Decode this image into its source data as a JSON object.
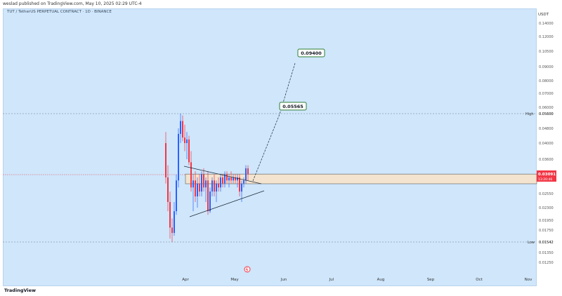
{
  "header": {
    "publisher": "weslad published on TradingView.com, May 10, 2025 02:29 UTC-4"
  },
  "chart_meta": {
    "symbol": "TUT / TetherUS PERPETUAL CONTRACT · 1D · BINANCE",
    "currency": "USDT",
    "high_label": "High",
    "low_label": "Low",
    "current_price": "0.03091",
    "countdown": "13:20:46",
    "logo_text": "TradingView",
    "colors": {
      "bg": "#cfe6fb",
      "up": "#2962ff",
      "down": "#f23645",
      "target": "#2e7d32",
      "zone": "#f4e4cf"
    }
  },
  "chart_data": {
    "type": "candlestick",
    "ylim": [
      0.01,
      0.145
    ],
    "y_ticks": [
      "0.14000",
      "0.12000",
      "0.10500",
      "0.09000",
      "0.08000",
      "0.07000",
      "0.06000",
      "0.05600",
      "0.04800",
      "0.04000",
      "0.03600",
      "0.03091",
      "0.02550",
      "0.02300",
      "0.01950",
      "0.01750",
      "0.01542",
      "0.01350",
      "0.01250"
    ],
    "x_ticks": [
      "Apr",
      "May",
      "Jun",
      "Jul",
      "Aug",
      "Sep",
      "Oct",
      "Nov"
    ],
    "high": {
      "label": "0.05600",
      "value": 0.056
    },
    "low": {
      "label": "0.01542",
      "value": 0.01542
    },
    "current_price": 0.03091,
    "zone": [
      0.0279,
      0.0311
    ],
    "targets": [
      {
        "label": "0.05565",
        "value": 0.05565
      },
      {
        "label": "0.09400",
        "value": 0.094
      }
    ],
    "candles_note": "approximate daily OHLC, Mar 18 – May 10, 2025",
    "candles": [
      [
        0.04,
        0.046,
        0.028,
        0.03
      ],
      [
        0.03,
        0.034,
        0.022,
        0.024
      ],
      [
        0.024,
        0.026,
        0.016,
        0.018
      ],
      [
        0.018,
        0.02,
        0.0154,
        0.017
      ],
      [
        0.017,
        0.024,
        0.0165,
        0.022
      ],
      [
        0.022,
        0.031,
        0.021,
        0.029
      ],
      [
        0.029,
        0.048,
        0.027,
        0.045
      ],
      [
        0.045,
        0.056,
        0.04,
        0.052
      ],
      [
        0.052,
        0.055,
        0.041,
        0.043
      ],
      [
        0.043,
        0.05,
        0.038,
        0.04
      ],
      [
        0.04,
        0.046,
        0.036,
        0.042
      ],
      [
        0.042,
        0.044,
        0.034,
        0.035
      ],
      [
        0.035,
        0.038,
        0.026,
        0.027
      ],
      [
        0.027,
        0.031,
        0.022,
        0.029
      ],
      [
        0.029,
        0.032,
        0.024,
        0.025
      ],
      [
        0.025,
        0.03,
        0.023,
        0.028
      ],
      [
        0.028,
        0.031,
        0.025,
        0.026
      ],
      [
        0.026,
        0.032,
        0.025,
        0.031
      ],
      [
        0.031,
        0.033,
        0.026,
        0.027
      ],
      [
        0.027,
        0.03,
        0.024,
        0.029
      ],
      [
        0.029,
        0.032,
        0.021,
        0.022
      ],
      [
        0.022,
        0.027,
        0.0215,
        0.026
      ],
      [
        0.026,
        0.03,
        0.025,
        0.029
      ],
      [
        0.029,
        0.031,
        0.025,
        0.026
      ],
      [
        0.026,
        0.029,
        0.024,
        0.028
      ],
      [
        0.028,
        0.03,
        0.026,
        0.027
      ],
      [
        0.027,
        0.031,
        0.026,
        0.03
      ],
      [
        0.03,
        0.031,
        0.027,
        0.028
      ],
      [
        0.028,
        0.032,
        0.027,
        0.031
      ],
      [
        0.031,
        0.032,
        0.028,
        0.029
      ],
      [
        0.029,
        0.031,
        0.027,
        0.03
      ],
      [
        0.03,
        0.032,
        0.028,
        0.029
      ],
      [
        0.029,
        0.031,
        0.028,
        0.03
      ],
      [
        0.03,
        0.031,
        0.028,
        0.029
      ],
      [
        0.029,
        0.031,
        0.027,
        0.03
      ],
      [
        0.03,
        0.031,
        0.025,
        0.026
      ],
      [
        0.026,
        0.029,
        0.024,
        0.028
      ],
      [
        0.028,
        0.03,
        0.027,
        0.029
      ],
      [
        0.029,
        0.034,
        0.028,
        0.033
      ],
      [
        0.033,
        0.034,
        0.029,
        0.031
      ]
    ]
  }
}
